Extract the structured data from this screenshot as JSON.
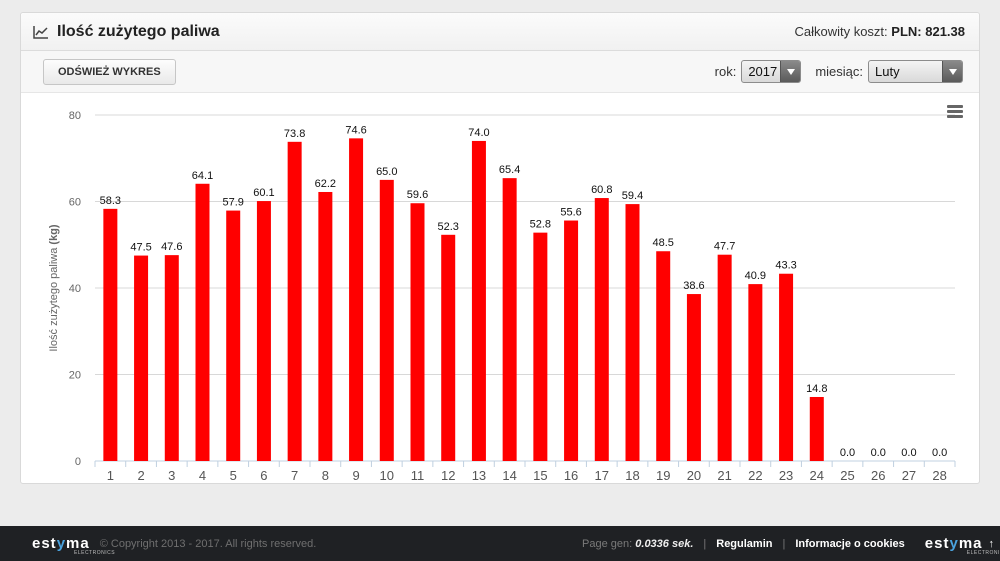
{
  "header": {
    "title": "Ilość zużytego paliwa",
    "total_label": "Całkowity koszt:",
    "total_value": "PLN: 821.38"
  },
  "toolbar": {
    "refresh_label": "ODŚWIEŻ WYKRES",
    "year_label": "rok:",
    "year_value": "2017",
    "month_label": "miesiąc:",
    "month_value": "Luty"
  },
  "chart_data": {
    "type": "bar",
    "ylabel_text": "Ilość zużytego paliwa ",
    "ylabel_unit": "(kg)",
    "ylim": [
      0,
      80
    ],
    "yticks": [
      0,
      20,
      40,
      60,
      80
    ],
    "categories": [
      "1",
      "2",
      "3",
      "4",
      "5",
      "6",
      "7",
      "8",
      "9",
      "10",
      "11",
      "12",
      "13",
      "14",
      "15",
      "16",
      "17",
      "18",
      "19",
      "20",
      "21",
      "22",
      "23",
      "24",
      "25",
      "26",
      "27",
      "28"
    ],
    "values": [
      58.3,
      47.5,
      47.6,
      64.1,
      57.9,
      60.1,
      73.8,
      62.2,
      74.6,
      65.0,
      59.6,
      52.3,
      74.0,
      65.4,
      52.8,
      55.6,
      60.8,
      59.4,
      48.5,
      38.6,
      47.7,
      40.9,
      43.3,
      14.8,
      0.0,
      0.0,
      0.0,
      0.0
    ],
    "value_labels": [
      "58.3",
      "47.5",
      "47.6",
      "64.1",
      "57.9",
      "60.1",
      "73.8",
      "62.2",
      "74.6",
      "65.0",
      "59.6",
      "52.3",
      "74.0",
      "65.4",
      "52.8",
      "55.6",
      "60.8",
      "59.4",
      "48.5",
      "38.6",
      "47.7",
      "40.9",
      "43.3",
      "14.8",
      "0.0",
      "0.0",
      "0.0",
      "0.0"
    ],
    "bar_color": "#ff0000",
    "grid": true
  },
  "icons": {
    "header_icon": "line-chart-icon",
    "chart_menu": "hamburger-menu-icon"
  },
  "footer": {
    "logo_text_left": "est",
    "logo_text_mid": "y",
    "logo_text_right": "ma",
    "logo_sub": "ELECTRONICS",
    "copyright": "© Copyright 2013 - 2017. All rights reserved.",
    "page_gen_label": "Page gen:",
    "page_gen_value": "0.0336 sek.",
    "link_regulamin": "Regulamin",
    "link_cookies": "Informacje o cookies"
  }
}
